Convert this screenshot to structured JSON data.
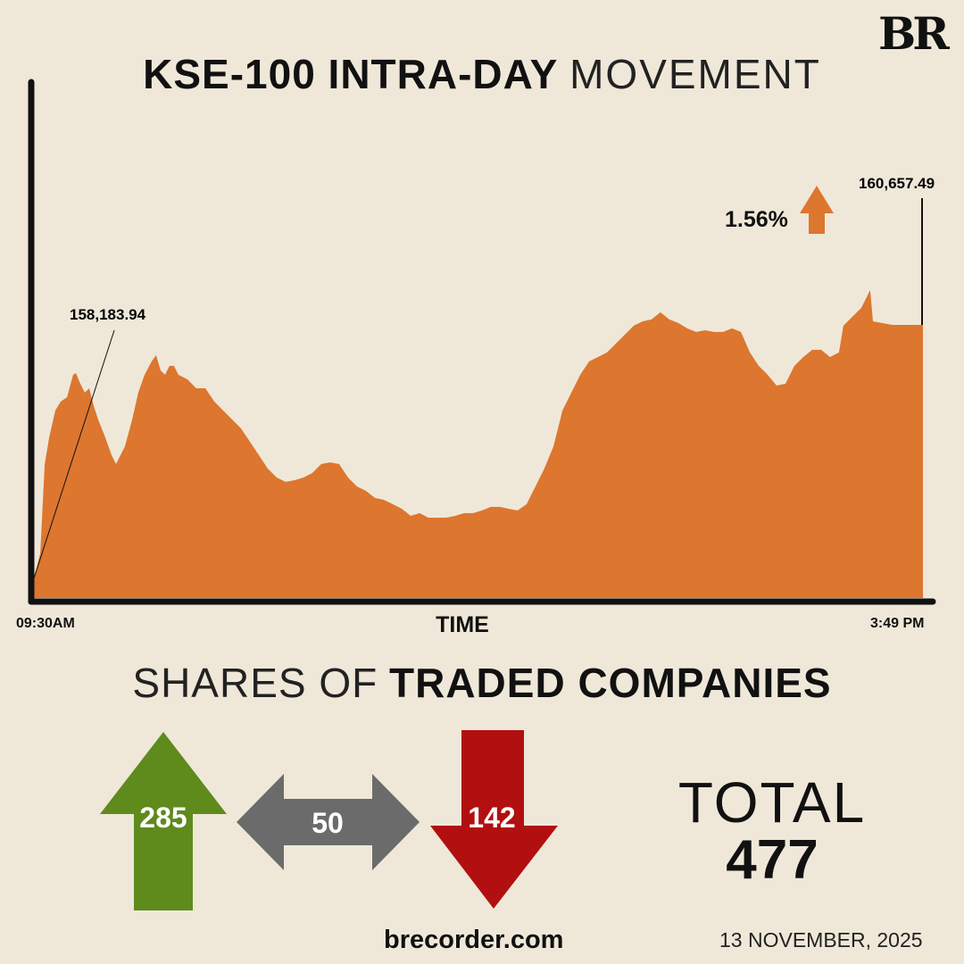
{
  "header": {
    "logo": "BR",
    "title_bold": "KSE-100 INTRA-DAY",
    "title_light": "MOVEMENT"
  },
  "chart_data": {
    "type": "area",
    "title": "KSE-100 INTRA-DAY MOVEMENT",
    "xlabel": "TIME",
    "x_tick_labels": [
      "09:30AM",
      "3:49 PM"
    ],
    "x_unit": "minutes since 09:30",
    "xlim": [
      0,
      379
    ],
    "ylim": [
      157992,
      163000
    ],
    "color": "#dd762e",
    "open_value": "158,183.94",
    "close_value": "160,657.49",
    "change_percent": "1.56%",
    "change_direction": "up",
    "minutes": [
      0,
      2.7,
      4.6,
      6.5,
      9.1,
      11.4,
      14.1,
      16.7,
      17.9,
      19.8,
      21.7,
      23.6,
      25.5,
      27.4,
      30.4,
      33.1,
      35,
      36.9,
      38.8,
      41.9,
      44.5,
      47.2,
      50.2,
      52.1,
      54,
      55.9,
      57.8,
      59.7,
      61.6,
      65.4,
      69.2,
      73.1,
      76.9,
      80.7,
      84.5,
      88.3,
      92.1,
      95.9,
      99.7,
      103.5,
      107.3,
      111.1,
      114.9,
      118.7,
      122.5,
      126.3,
      130.1,
      133.9,
      137.7,
      141.5,
      145.4,
      149.2,
      153,
      156.8,
      160.6,
      164.4,
      168.2,
      172,
      175.8,
      179.6,
      183.4,
      187.2,
      191,
      194.8,
      198.6,
      202.4,
      206.2,
      210,
      213.8,
      217.6,
      221.5,
      225.3,
      229.1,
      232.9,
      236.7,
      240.5,
      244.3,
      248.1,
      251.9,
      255.7,
      259.5,
      263.3,
      267.1,
      270.9,
      274.7,
      278.5,
      282.3,
      286.1,
      289.9,
      293.8,
      297.6,
      301.4,
      305.2,
      309,
      312.8,
      316.6,
      320.4,
      324.2,
      328,
      331.8,
      335.6,
      339.4,
      343.2,
      345.1,
      348.9,
      352.7,
      356.5,
      357.7,
      366,
      379
    ],
    "values": [
      158184,
      158428,
      159299,
      159560,
      159821,
      159909,
      159952,
      160170,
      160187,
      160083,
      159996,
      160039,
      159865,
      159734,
      159560,
      159386,
      159299,
      159386,
      159473,
      159734,
      159996,
      160170,
      160301,
      160362,
      160213,
      160170,
      160257,
      160257,
      160170,
      160126,
      160039,
      160039,
      159909,
      159821,
      159734,
      159647,
      159517,
      159386,
      159255,
      159168,
      159125,
      159142,
      159168,
      159212,
      159299,
      159316,
      159299,
      159168,
      159081,
      159038,
      158968,
      158950,
      158907,
      158863,
      158794,
      158820,
      158776,
      158776,
      158776,
      158794,
      158820,
      158820,
      158846,
      158881,
      158881,
      158863,
      158846,
      158907,
      159081,
      159255,
      159473,
      159821,
      159996,
      160170,
      160301,
      160344,
      160388,
      160475,
      160562,
      160649,
      160692,
      160710,
      160780,
      160710,
      160675,
      160623,
      160588,
      160605,
      160588,
      160588,
      160623,
      160588,
      160388,
      160257,
      160170,
      160065,
      160083,
      160257,
      160344,
      160414,
      160414,
      160344,
      160388,
      160649,
      160736,
      160823,
      160997,
      160692,
      160657,
      160657
    ]
  },
  "breadth": {
    "title_light": "SHARES OF",
    "title_bold": "TRADED COMPANIES",
    "advanced": "285",
    "unchanged": "50",
    "declined": "142",
    "total_label": "TOTAL",
    "total_value": "477",
    "colors": {
      "up": "#5f8a1c",
      "flat": "#6b6b6b",
      "down": "#b20f10"
    }
  },
  "footer": {
    "site": "brecorder.com",
    "date": "13 NOVEMBER, 2025"
  }
}
